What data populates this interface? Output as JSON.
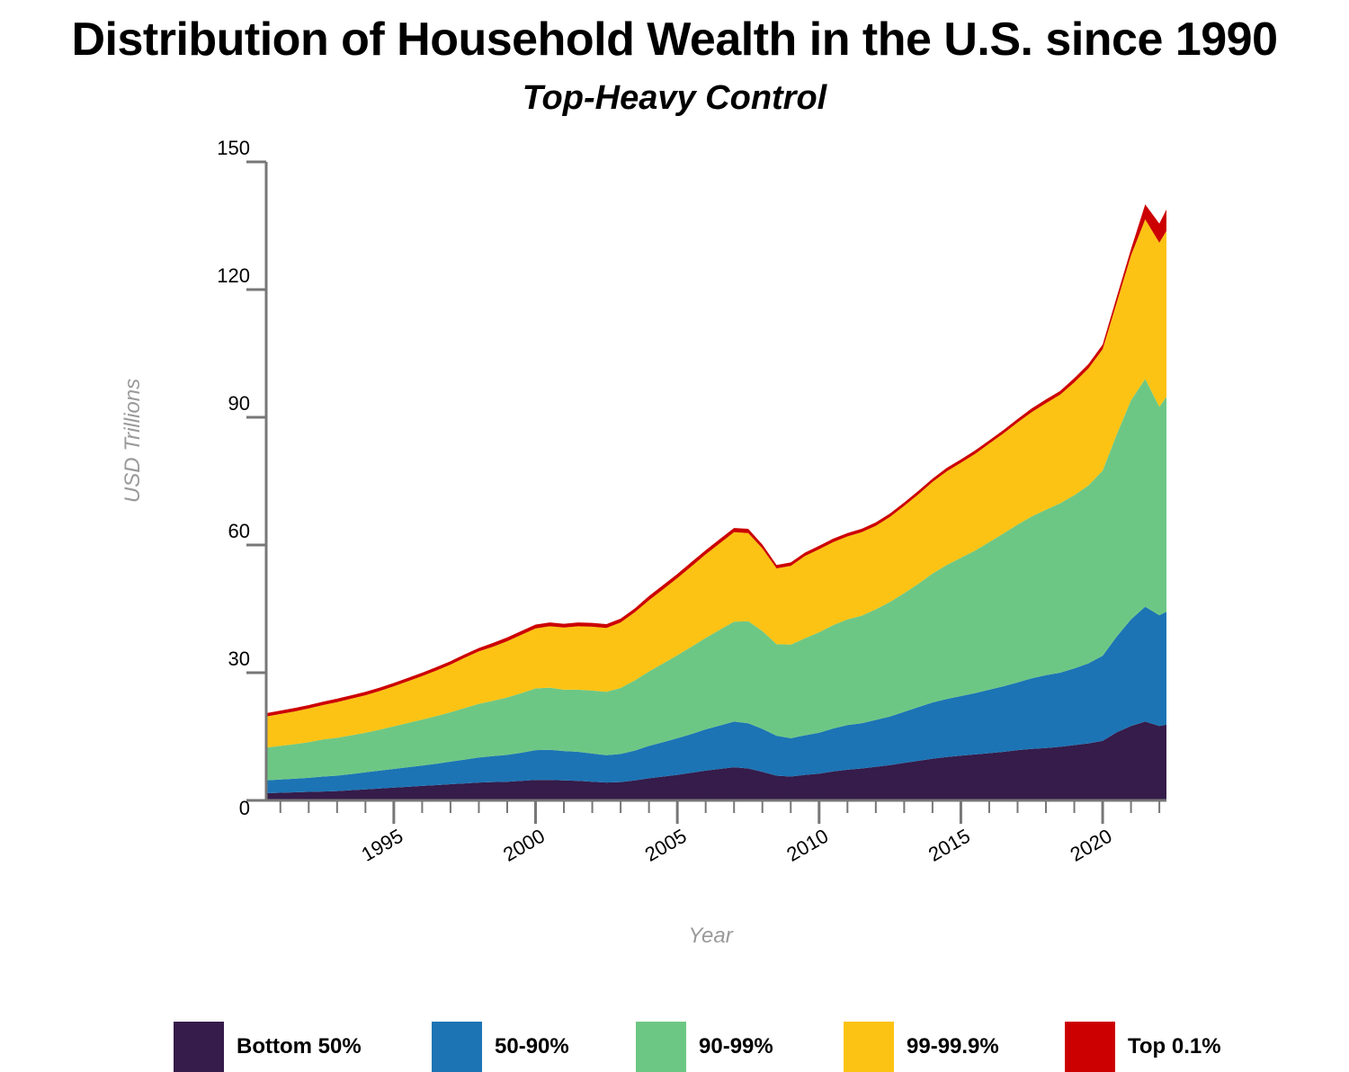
{
  "title": "Distribution of Household Wealth in the U.S. since 1990",
  "subtitle": "Top-Heavy Control",
  "chart_data": {
    "type": "area",
    "stacked": true,
    "xlabel": "Year",
    "ylabel": "USD Trillions",
    "xlim": [
      1990.5,
      2022.25
    ],
    "ylim": [
      0,
      150
    ],
    "yticks": [
      0,
      30,
      60,
      90,
      120,
      150
    ],
    "xticks": [
      1995,
      2000,
      2005,
      2010,
      2015,
      2020
    ],
    "x": [
      1990.5,
      1991,
      1991.5,
      1992,
      1992.5,
      1993,
      1993.5,
      1994,
      1994.5,
      1995,
      1995.5,
      1996,
      1996.5,
      1997,
      1997.5,
      1998,
      1998.5,
      1999,
      1999.5,
      2000,
      2000.5,
      2001,
      2001.5,
      2002,
      2002.5,
      2003,
      2003.5,
      2004,
      2004.5,
      2005,
      2005.5,
      2006,
      2006.5,
      2007,
      2007.5,
      2008,
      2008.5,
      2009,
      2009.5,
      2010,
      2010.5,
      2011,
      2011.5,
      2012,
      2012.5,
      2013,
      2013.5,
      2014,
      2014.5,
      2015,
      2015.5,
      2016,
      2016.5,
      2017,
      2017.5,
      2018,
      2018.5,
      2019,
      2019.5,
      2020,
      2020.5,
      2021,
      2021.5,
      2022,
      2022.25
    ],
    "series": [
      {
        "name": "Bottom 50%",
        "color": "#351c4a",
        "values": [
          1.7,
          1.8,
          1.9,
          2.0,
          2.1,
          2.2,
          2.4,
          2.6,
          2.8,
          3.0,
          3.2,
          3.4,
          3.6,
          3.8,
          4.0,
          4.2,
          4.3,
          4.4,
          4.6,
          4.8,
          4.8,
          4.7,
          4.6,
          4.4,
          4.2,
          4.3,
          4.7,
          5.2,
          5.6,
          6.0,
          6.5,
          7.0,
          7.4,
          7.8,
          7.5,
          6.7,
          5.8,
          5.6,
          6.0,
          6.3,
          6.8,
          7.2,
          7.5,
          7.9,
          8.3,
          8.8,
          9.3,
          9.8,
          10.2,
          10.5,
          10.8,
          11.1,
          11.4,
          11.8,
          12.1,
          12.3,
          12.6,
          13.0,
          13.4,
          14.0,
          16.0,
          17.5,
          18.5,
          17.5,
          17.8
        ]
      },
      {
        "name": "50-90%",
        "color": "#1c74b4",
        "values": [
          3.0,
          3.1,
          3.2,
          3.3,
          3.5,
          3.6,
          3.8,
          4.0,
          4.2,
          4.4,
          4.6,
          4.8,
          5.0,
          5.3,
          5.6,
          5.9,
          6.1,
          6.3,
          6.6,
          7.0,
          7.1,
          6.9,
          6.8,
          6.6,
          6.4,
          6.6,
          7.0,
          7.6,
          8.1,
          8.6,
          9.1,
          9.7,
          10.2,
          10.7,
          10.6,
          10.1,
          9.4,
          9.0,
          9.3,
          9.6,
          10.1,
          10.5,
          10.6,
          11.0,
          11.4,
          12.0,
          12.6,
          13.2,
          13.6,
          14.0,
          14.4,
          14.9,
          15.4,
          15.9,
          16.6,
          17.1,
          17.4,
          18.0,
          18.8,
          20.0,
          22.5,
          25.0,
          27.0,
          26.0,
          26.5
        ]
      },
      {
        "name": "90-99%",
        "color": "#6dc784",
        "values": [
          7.7,
          7.9,
          8.1,
          8.4,
          8.7,
          8.9,
          9.1,
          9.3,
          9.6,
          10.0,
          10.4,
          10.8,
          11.2,
          11.6,
          12.1,
          12.6,
          13.0,
          13.5,
          14.0,
          14.5,
          14.6,
          14.4,
          14.6,
          14.8,
          14.9,
          15.5,
          16.5,
          17.5,
          18.5,
          19.5,
          20.5,
          21.5,
          22.5,
          23.5,
          24.0,
          23.0,
          21.5,
          22.0,
          22.8,
          23.6,
          24.3,
          24.8,
          25.3,
          26.0,
          26.9,
          27.9,
          29.0,
          30.3,
          31.5,
          32.5,
          33.5,
          34.7,
          35.9,
          37.1,
          38.0,
          38.9,
          39.8,
          40.7,
          41.8,
          43.5,
          47.5,
          51.5,
          53.5,
          49.0,
          50.5
        ]
      },
      {
        "name": "99-99.9%",
        "color": "#fcc314",
        "values": [
          7.3,
          7.5,
          7.7,
          7.9,
          8.1,
          8.4,
          8.6,
          8.8,
          9.1,
          9.4,
          9.8,
          10.2,
          10.7,
          11.2,
          11.8,
          12.3,
          12.7,
          13.2,
          13.7,
          14.1,
          14.4,
          14.6,
          14.9,
          15.0,
          15.0,
          15.4,
          16.0,
          16.7,
          17.4,
          18.1,
          18.9,
          19.6,
          20.3,
          21.0,
          20.7,
          19.4,
          17.8,
          18.5,
          19.3,
          19.5,
          19.5,
          19.5,
          19.6,
          19.6,
          20.0,
          20.5,
          21.0,
          21.5,
          22.0,
          22.3,
          22.7,
          23.1,
          23.5,
          24.0,
          24.5,
          25.0,
          25.5,
          26.5,
          27.5,
          28.5,
          31.0,
          34.0,
          37.5,
          38.5,
          39.0
        ]
      },
      {
        "name": "Top 0.1%",
        "color": "#cc0000",
        "values": [
          0.8,
          0.8,
          0.8,
          0.8,
          0.8,
          0.8,
          0.8,
          0.8,
          0.8,
          0.8,
          0.8,
          0.8,
          0.8,
          0.8,
          0.8,
          0.8,
          0.9,
          0.9,
          0.9,
          0.9,
          0.9,
          0.9,
          0.9,
          0.9,
          0.9,
          0.9,
          0.9,
          1.0,
          1.0,
          1.0,
          1.0,
          1.0,
          1.0,
          1.0,
          1.0,
          0.9,
          0.8,
          0.8,
          0.8,
          0.8,
          0.8,
          0.8,
          0.8,
          0.8,
          0.8,
          0.8,
          0.8,
          0.8,
          0.8,
          0.8,
          0.8,
          0.8,
          0.8,
          0.8,
          0.9,
          0.9,
          0.9,
          1.0,
          1.0,
          1.1,
          1.3,
          1.5,
          3.5,
          4.5,
          5.0
        ]
      }
    ],
    "legend_position": "bottom",
    "grid": false
  }
}
